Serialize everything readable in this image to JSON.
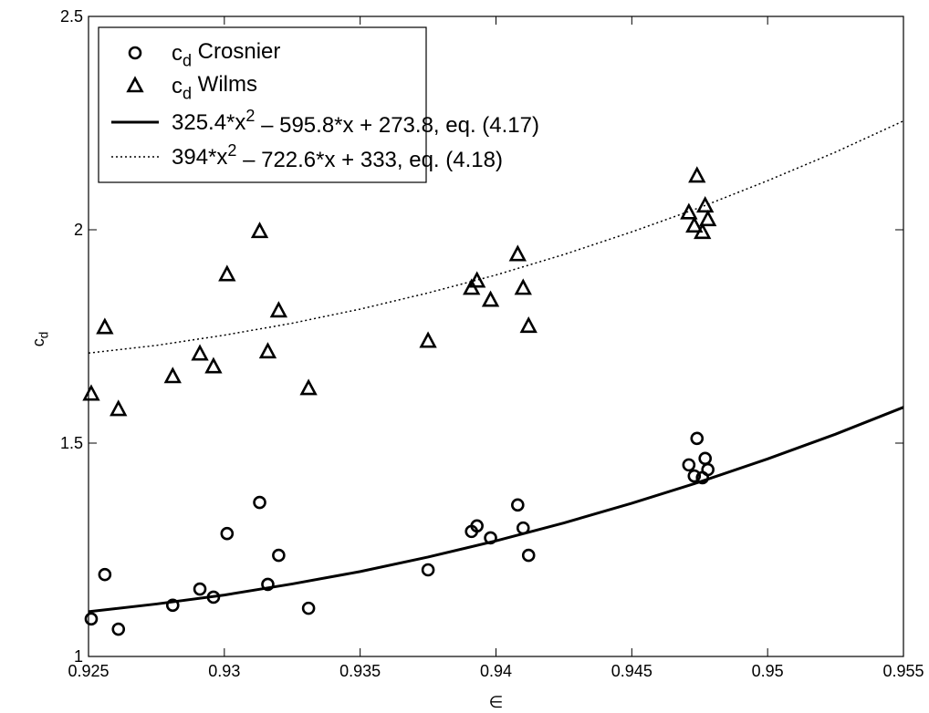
{
  "chart_data": {
    "type": "scatter",
    "xlabel": "∈",
    "ylabel": [
      {
        "text": "c"
      },
      {
        "sub": "d"
      }
    ],
    "xlim": [
      0.925,
      0.955
    ],
    "ylim": [
      1,
      2.5
    ],
    "xticks": [
      0.925,
      0.93,
      0.935,
      0.94,
      0.945,
      0.95,
      0.955
    ],
    "yticks": [
      1,
      1.5,
      2,
      2.5
    ],
    "grid": false,
    "legend": "upper left",
    "series": [
      {
        "name": [
          {
            "text": "c"
          },
          {
            "sub": "d"
          },
          {
            "text": " Crosnier"
          }
        ],
        "kind": "scatter",
        "marker": "circle",
        "color": "#000000",
        "x": [
          0.9251,
          0.9256,
          0.9261,
          0.9281,
          0.9291,
          0.9296,
          0.9301,
          0.9313,
          0.9316,
          0.932,
          0.9331,
          0.9375,
          0.9391,
          0.9393,
          0.9398,
          0.9408,
          0.941,
          0.9412,
          0.9471,
          0.9473,
          0.9474,
          0.9476,
          0.9477,
          0.9478
        ],
        "values": [
          1.088,
          1.192,
          1.064,
          1.12,
          1.158,
          1.139,
          1.288,
          1.361,
          1.169,
          1.237,
          1.113,
          1.203,
          1.293,
          1.306,
          1.278,
          1.355,
          1.301,
          1.237,
          1.449,
          1.423,
          1.511,
          1.419,
          1.464,
          1.438
        ]
      },
      {
        "name": [
          {
            "text": "c"
          },
          {
            "sub": "d"
          },
          {
            "text": " Wilms"
          }
        ],
        "kind": "scatter",
        "marker": "triangle",
        "color": "#000000",
        "x": [
          0.9251,
          0.9256,
          0.9261,
          0.9281,
          0.9291,
          0.9296,
          0.9301,
          0.9313,
          0.9316,
          0.932,
          0.9331,
          0.9375,
          0.9391,
          0.9393,
          0.9398,
          0.9408,
          0.941,
          0.9412,
          0.9471,
          0.9473,
          0.9474,
          0.9476,
          0.9477,
          0.9478
        ],
        "values": [
          1.615,
          1.771,
          1.579,
          1.656,
          1.709,
          1.679,
          1.895,
          1.996,
          1.714,
          1.81,
          1.628,
          1.739,
          1.863,
          1.88,
          1.835,
          1.942,
          1.863,
          1.774,
          2.04,
          2.009,
          2.126,
          1.994,
          2.056,
          2.024
        ]
      },
      {
        "name": [
          {
            "text": "325.4*x"
          },
          {
            "sup": "2"
          },
          {
            "text": " – 595.8*x + 273.8, eq. (4.17)"
          }
        ],
        "kind": "line",
        "dash": "solid",
        "color": "#000000",
        "x": [
          0.925,
          0.9275,
          0.93,
          0.9325,
          0.935,
          0.9375,
          0.94,
          0.9425,
          0.945,
          0.9475,
          0.95,
          0.9525,
          0.955
        ],
        "values": [
          1.105,
          1.123,
          1.144,
          1.17,
          1.199,
          1.233,
          1.271,
          1.313,
          1.359,
          1.409,
          1.463,
          1.521,
          1.584
        ]
      },
      {
        "name": [
          {
            "text": "394*x"
          },
          {
            "sup": "2"
          },
          {
            "text": " – 722.6*x + 333, eq. (4.18)"
          }
        ],
        "kind": "line",
        "dash": "dotted",
        "color": "#000000",
        "x": [
          0.925,
          0.9275,
          0.93,
          0.9325,
          0.935,
          0.9375,
          0.94,
          0.9425,
          0.945,
          0.9475,
          0.95,
          0.9525,
          0.955
        ],
        "values": [
          1.711,
          1.729,
          1.753,
          1.781,
          1.814,
          1.852,
          1.894,
          1.942,
          1.995,
          2.052,
          2.115,
          2.182,
          2.255
        ]
      }
    ]
  }
}
